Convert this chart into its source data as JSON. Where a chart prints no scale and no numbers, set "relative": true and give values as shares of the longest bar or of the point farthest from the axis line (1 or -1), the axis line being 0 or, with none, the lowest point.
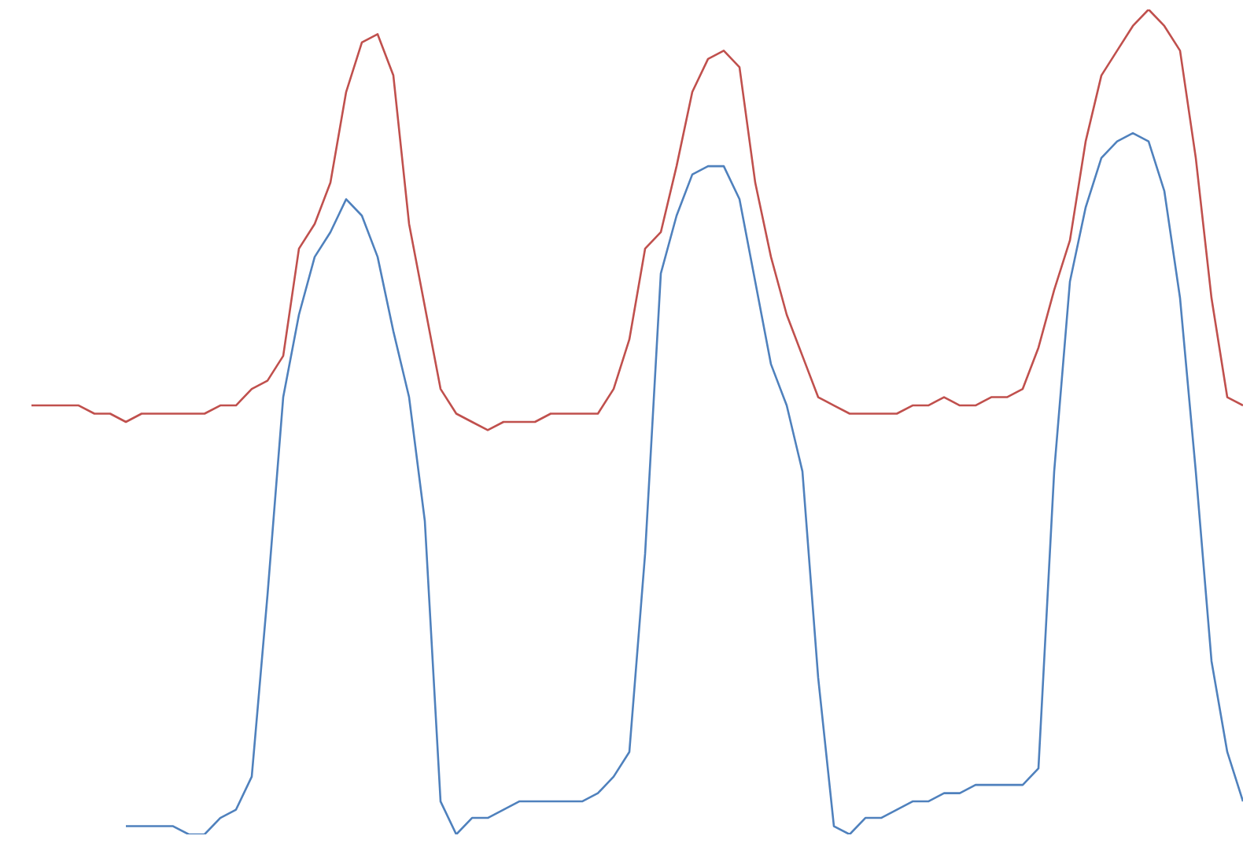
{
  "chart_data": {
    "type": "line",
    "relative": true,
    "categories": [
      null,
      null,
      null,
      null,
      null,
      null,
      null,
      null,
      null,
      null,
      null,
      null,
      null,
      null,
      null,
      null,
      null,
      null,
      null,
      null,
      null,
      null,
      null,
      null,
      null,
      null,
      null,
      null,
      null,
      null,
      null,
      null,
      null,
      null,
      null,
      null,
      null,
      null,
      null,
      null,
      null,
      null,
      null,
      null,
      null,
      null,
      null,
      null,
      null,
      null,
      null,
      null,
      null,
      null,
      null,
      null,
      null,
      null,
      null,
      null,
      null,
      null,
      null,
      null,
      null,
      null,
      null,
      null,
      null,
      null,
      null,
      null,
      null,
      null,
      null,
      null,
      null,
      null
    ],
    "series": [
      {
        "color": "#c0504d",
        "values": [
          0.52,
          0.52,
          0.52,
          0.52,
          0.51,
          0.51,
          0.5,
          0.51,
          0.51,
          0.51,
          0.51,
          0.51,
          0.52,
          0.52,
          0.54,
          0.55,
          0.58,
          0.71,
          0.74,
          0.79,
          0.9,
          0.96,
          0.97,
          0.92,
          0.74,
          0.64,
          0.54,
          0.51,
          0.5,
          0.49,
          0.5,
          0.5,
          0.5,
          0.51,
          0.51,
          0.51,
          0.51,
          0.54,
          0.6,
          0.71,
          0.73,
          0.81,
          0.9,
          0.94,
          0.95,
          0.93,
          0.79,
          0.7,
          0.63,
          0.58,
          0.53,
          0.52,
          0.51,
          0.51,
          0.51,
          0.51,
          0.52,
          0.52,
          0.53,
          0.52,
          0.52,
          0.53,
          0.53,
          0.54,
          0.59,
          0.66,
          0.72,
          0.84,
          0.92,
          0.95,
          0.98,
          1.0,
          0.98,
          0.95,
          0.82,
          0.65,
          0.53,
          0.52
        ]
      },
      {
        "color": "#4f81bd",
        "values": [
          null,
          null,
          null,
          null,
          null,
          null,
          0.01,
          0.01,
          0.01,
          0.01,
          0.0,
          0.0,
          0.02,
          0.03,
          0.07,
          0.29,
          0.53,
          0.63,
          0.7,
          0.73,
          0.77,
          0.75,
          0.7,
          0.61,
          0.53,
          0.38,
          0.04,
          0.0,
          0.02,
          0.02,
          0.03,
          0.04,
          0.04,
          0.04,
          0.04,
          0.04,
          0.05,
          0.07,
          0.1,
          0.34,
          0.68,
          0.75,
          0.8,
          0.81,
          0.81,
          0.77,
          0.67,
          0.57,
          0.52,
          0.44,
          0.19,
          0.01,
          0.0,
          0.02,
          0.02,
          0.03,
          0.04,
          0.04,
          0.05,
          0.05,
          0.06,
          0.06,
          0.06,
          0.06,
          0.08,
          0.44,
          0.67,
          0.76,
          0.82,
          0.84,
          0.85,
          0.84,
          0.78,
          0.65,
          0.44,
          0.21,
          0.1,
          0.04
        ]
      }
    ]
  }
}
